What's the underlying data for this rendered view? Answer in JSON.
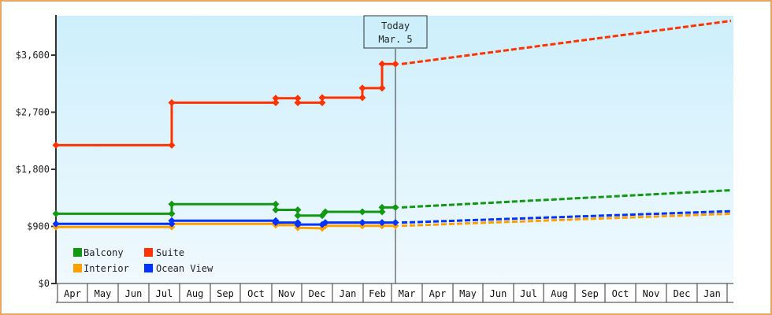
{
  "chart_data": {
    "type": "line",
    "title": "",
    "xlabel": "",
    "ylabel": "",
    "ylim": [
      0,
      4200
    ],
    "y_ticks": [
      "$0",
      "$900",
      "$1,800",
      "$2,700",
      "$3,600"
    ],
    "y_tick_values": [
      0,
      900,
      1800,
      2700,
      3600
    ],
    "x_months": [
      "Apr",
      "May",
      "Jun",
      "Jul",
      "Aug",
      "Sep",
      "Oct",
      "Nov",
      "Dec",
      "Jan",
      "Feb",
      "Mar",
      "Apr",
      "May",
      "Jun",
      "Jul",
      "Aug",
      "Sep",
      "Oct",
      "Nov",
      "Dec",
      "Jan"
    ],
    "grid": false,
    "legend_position": "bottom-left inside",
    "today_marker": {
      "line1": "Today",
      "line2": "Mar. 5"
    },
    "series": [
      {
        "name": "Balcony",
        "color": "#119911",
        "history": [
          [
            "Apr 1",
            1100
          ],
          [
            "Jul 10",
            1100
          ],
          [
            "Jul 10",
            1250
          ],
          [
            "Nov 1",
            1250
          ],
          [
            "Nov 1",
            1160
          ],
          [
            "Nov 20",
            1160
          ],
          [
            "Nov 20",
            1070
          ],
          [
            "Dec 15",
            1070
          ],
          [
            "Dec 18",
            1130
          ],
          [
            "Jan 28",
            1130
          ],
          [
            "Feb 15",
            1130
          ],
          [
            "Feb 15",
            1200
          ],
          [
            "Mar 5",
            1200
          ]
        ],
        "forecast_end": 1470
      },
      {
        "name": "Suite",
        "color": "#ff3300",
        "history": [
          [
            "Apr 1",
            2180
          ],
          [
            "Jul 10",
            2180
          ],
          [
            "Jul 10",
            2850
          ],
          [
            "Nov 1",
            2850
          ],
          [
            "Nov 1",
            2920
          ],
          [
            "Nov 20",
            2920
          ],
          [
            "Nov 20",
            2850
          ],
          [
            "Dec 15",
            2850
          ],
          [
            "Dec 15",
            2930
          ],
          [
            "Jan 28",
            2930
          ],
          [
            "Jan 28",
            3080
          ],
          [
            "Feb 15",
            3080
          ],
          [
            "Feb 15",
            3460
          ],
          [
            "Mar 5",
            3460
          ]
        ],
        "forecast_end": 4140
      },
      {
        "name": "Interior",
        "color": "#ffa000",
        "history": [
          [
            "Apr 1",
            890
          ],
          [
            "Jul 10",
            890
          ],
          [
            "Jul 10",
            940
          ],
          [
            "Nov 1",
            940
          ],
          [
            "Nov 1",
            920
          ],
          [
            "Nov 20",
            920
          ],
          [
            "Nov 20",
            880
          ],
          [
            "Dec 15",
            870
          ],
          [
            "Dec 18",
            910
          ],
          [
            "Jan 28",
            910
          ],
          [
            "Feb 15",
            910
          ],
          [
            "Mar 5",
            910
          ]
        ],
        "forecast_end": 1100
      },
      {
        "name": "Ocean View",
        "color": "#0033ff",
        "history": [
          [
            "Apr 1",
            940
          ],
          [
            "Jul 10",
            940
          ],
          [
            "Jul 10",
            990
          ],
          [
            "Nov 1",
            990
          ],
          [
            "Nov 1",
            960
          ],
          [
            "Nov 20",
            960
          ],
          [
            "Nov 20",
            930
          ],
          [
            "Dec 15",
            930
          ],
          [
            "Dec 18",
            960
          ],
          [
            "Jan 28",
            960
          ],
          [
            "Feb 15",
            960
          ],
          [
            "Mar 5",
            960
          ]
        ],
        "forecast_end": 1140
      }
    ]
  },
  "legend": [
    {
      "label": "Balcony",
      "color": "#119911"
    },
    {
      "label": "Suite",
      "color": "#ff3300"
    },
    {
      "label": "Interior",
      "color": "#ffa000"
    },
    {
      "label": "Ocean View",
      "color": "#0033ff"
    }
  ],
  "today": {
    "line1": "Today",
    "line2": "Mar. 5"
  },
  "y_axis": [
    "$0",
    "$900",
    "$1,800",
    "$2,700",
    "$3,600"
  ],
  "x_axis": [
    "Apr",
    "May",
    "Jun",
    "Jul",
    "Aug",
    "Sep",
    "Oct",
    "Nov",
    "Dec",
    "Jan",
    "Feb",
    "Mar",
    "Apr",
    "May",
    "Jun",
    "Jul",
    "Aug",
    "Sep",
    "Oct",
    "Nov",
    "Dec",
    "Jan"
  ]
}
